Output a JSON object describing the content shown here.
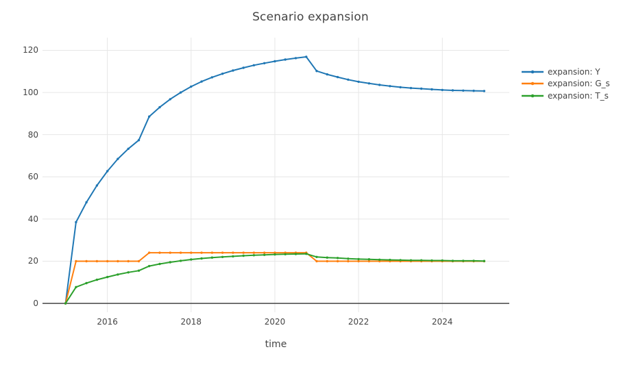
{
  "figure": {
    "title": "Scenario expansion",
    "x_axis": {
      "title": "time",
      "tick_labels": [
        "2016",
        "2018",
        "2020",
        "2022",
        "2024"
      ],
      "tick_values": [
        2016,
        2018,
        2020,
        2022,
        2024
      ]
    },
    "y_axis": {
      "tick_labels": [
        "0",
        "20",
        "40",
        "60",
        "80",
        "100",
        "120"
      ],
      "tick_values": [
        0,
        20,
        40,
        60,
        80,
        100,
        120
      ]
    }
  },
  "colors": {
    "background": "#ffffff",
    "gridline": "#e6e6e6",
    "zeroline": "#444444",
    "text": "#444444",
    "series_y": "#1f77b4",
    "series_g_s": "#ff7f0e",
    "series_t_s": "#2ca02c"
  },
  "chart_data": {
    "type": "line",
    "title": "Scenario expansion",
    "xlabel": "time",
    "ylabel": "",
    "xlim": [
      2014.45,
      2025.6
    ],
    "ylim": [
      -4.2,
      126
    ],
    "grid": true,
    "legend_position": "right",
    "mode": "lines+markers",
    "x": [
      2015.0,
      2015.25,
      2015.5,
      2015.75,
      2016.0,
      2016.25,
      2016.5,
      2016.75,
      2017.0,
      2017.25,
      2017.5,
      2017.75,
      2018.0,
      2018.25,
      2018.5,
      2018.75,
      2019.0,
      2019.25,
      2019.5,
      2019.75,
      2020.0,
      2020.25,
      2020.5,
      2020.75,
      2021.0,
      2021.25,
      2021.5,
      2021.75,
      2022.0,
      2022.25,
      2022.5,
      2022.75,
      2023.0,
      2023.25,
      2023.5,
      2023.75,
      2024.0,
      2024.25,
      2024.5,
      2024.75,
      2025.0
    ],
    "series": [
      {
        "name": "expansion: Y",
        "color": "#1f77b4",
        "values": [
          0,
          38.5,
          47.9,
          55.9,
          62.7,
          68.5,
          73.3,
          77.4,
          88.6,
          93.0,
          96.8,
          100.0,
          102.8,
          105.2,
          107.2,
          108.9,
          110.4,
          111.7,
          112.9,
          113.9,
          114.8,
          115.6,
          116.3,
          116.9,
          110.2,
          108.6,
          107.3,
          106.1,
          105.1,
          104.3,
          103.6,
          103.0,
          102.5,
          102.1,
          101.8,
          101.5,
          101.2,
          101.0,
          100.9,
          100.8,
          100.7
        ]
      },
      {
        "name": "expansion: G_s",
        "color": "#ff7f0e",
        "values": [
          0,
          20,
          20,
          20,
          20,
          20,
          20,
          20,
          24,
          24,
          24,
          24,
          24,
          24,
          24,
          24,
          24,
          24,
          24,
          24,
          24,
          24,
          24,
          24,
          20,
          20,
          20,
          20,
          20,
          20,
          20,
          20,
          20,
          20,
          20,
          20,
          20,
          20,
          20,
          20,
          20
        ]
      },
      {
        "name": "expansion: T_s",
        "color": "#2ca02c",
        "values": [
          0,
          7.7,
          9.6,
          11.2,
          12.5,
          13.7,
          14.7,
          15.5,
          17.7,
          18.7,
          19.5,
          20.2,
          20.8,
          21.3,
          21.7,
          22.0,
          22.3,
          22.6,
          22.8,
          23.0,
          23.2,
          23.3,
          23.4,
          23.5,
          22.0,
          21.7,
          21.5,
          21.2,
          21.0,
          20.9,
          20.7,
          20.6,
          20.5,
          20.4,
          20.4,
          20.3,
          20.3,
          20.2,
          20.2,
          20.2,
          20.1
        ]
      }
    ]
  }
}
